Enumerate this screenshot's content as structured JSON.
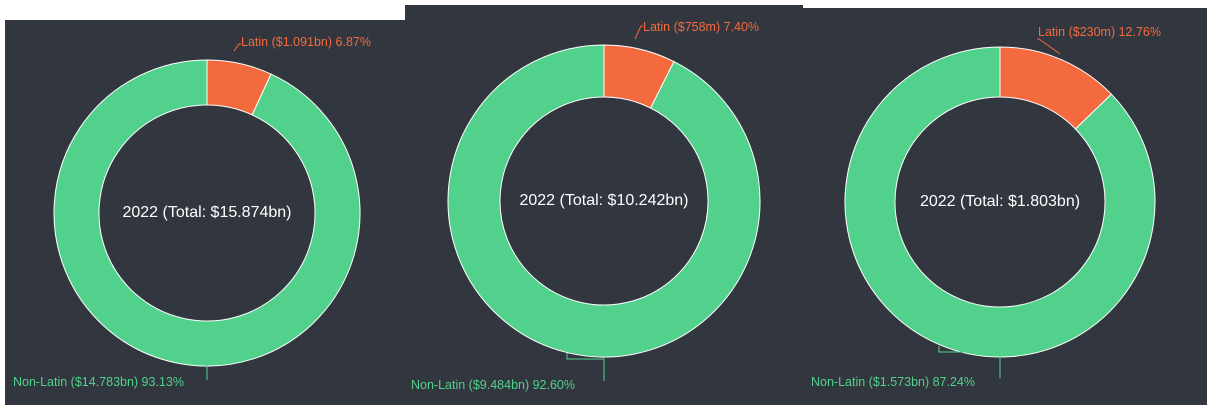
{
  "colors": {
    "latin": "#f36a3f",
    "non_latin": "#52d18c",
    "background": "#32363e",
    "center_text": "#ffffff"
  },
  "chart_data": [
    {
      "type": "pie",
      "variant": "donut",
      "center_label": "2022 (Total: $15.874bn)",
      "slices": [
        {
          "name": "Latin",
          "value": 1.091,
          "percent": 6.87,
          "label": "Latin ($1.091bn) 6.87%"
        },
        {
          "name": "Non-Latin",
          "value": 14.783,
          "percent": 93.13,
          "label": "Non-Latin ($14.783bn) 93.13%"
        }
      ]
    },
    {
      "type": "pie",
      "variant": "donut",
      "center_label": "2022 (Total: $10.242bn)",
      "slices": [
        {
          "name": "Latin",
          "value": 0.758,
          "percent": 7.4,
          "label": "Latin ($758m) 7.40%"
        },
        {
          "name": "Non-Latin",
          "value": 9.484,
          "percent": 92.6,
          "label": "Non-Latin ($9.484bn) 92.60%"
        }
      ]
    },
    {
      "type": "pie",
      "variant": "donut",
      "center_label": "2022 (Total: $1.803bn)",
      "slices": [
        {
          "name": "Latin",
          "value": 0.23,
          "percent": 12.76,
          "label": "Latin ($230m) 12.76%"
        },
        {
          "name": "Non-Latin",
          "value": 1.573,
          "percent": 87.24,
          "label": "Non-Latin ($1.573bn) 87.24%"
        }
      ]
    }
  ]
}
